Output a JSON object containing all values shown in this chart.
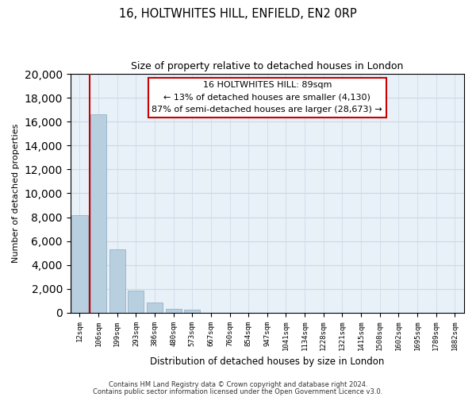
{
  "title1": "16, HOLTWHITES HILL, ENFIELD, EN2 0RP",
  "title2": "Size of property relative to detached houses in London",
  "xlabel": "Distribution of detached houses by size in London",
  "ylabel": "Number of detached properties",
  "bar_labels": [
    "12sqm",
    "106sqm",
    "199sqm",
    "293sqm",
    "386sqm",
    "480sqm",
    "573sqm",
    "667sqm",
    "760sqm",
    "854sqm",
    "947sqm",
    "1041sqm",
    "1134sqm",
    "1228sqm",
    "1321sqm",
    "1415sqm",
    "1508sqm",
    "1602sqm",
    "1695sqm",
    "1789sqm",
    "1882sqm"
  ],
  "bar_values": [
    8200,
    16600,
    5300,
    1850,
    820,
    300,
    280,
    0,
    0,
    0,
    0,
    0,
    0,
    0,
    0,
    0,
    0,
    0,
    0,
    0,
    0
  ],
  "bar_color": "#b8cfe0",
  "annotation_border_color": "#cc0000",
  "annotation_line1": "16 HOLTWHITES HILL: 89sqm",
  "annotation_line2": "← 13% of detached houses are smaller (4,130)",
  "annotation_line3": "87% of semi-detached houses are larger (28,673) →",
  "marker_bar_index": 1,
  "ylim": [
    0,
    20000
  ],
  "yticks": [
    0,
    2000,
    4000,
    6000,
    8000,
    10000,
    12000,
    14000,
    16000,
    18000,
    20000
  ],
  "grid_color": "#ccd8e4",
  "bg_color": "#e8f0f8",
  "footer1": "Contains HM Land Registry data © Crown copyright and database right 2024.",
  "footer2": "Contains public sector information licensed under the Open Government Licence v3.0."
}
